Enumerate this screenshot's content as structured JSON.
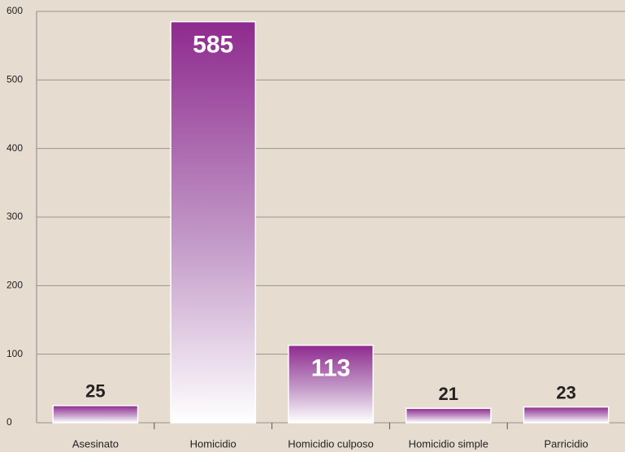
{
  "chart_data": {
    "type": "bar",
    "categories": [
      "Asesinato",
      "Homicidio",
      "Homicidio culposo",
      "Homicidio simple",
      "Parricidio"
    ],
    "values": [
      25,
      585,
      113,
      21,
      23
    ],
    "color": "#8e2a8e",
    "ylim": [
      0,
      600
    ],
    "yticks": [
      0,
      100,
      200,
      300,
      400,
      500,
      600
    ],
    "grid": true
  }
}
